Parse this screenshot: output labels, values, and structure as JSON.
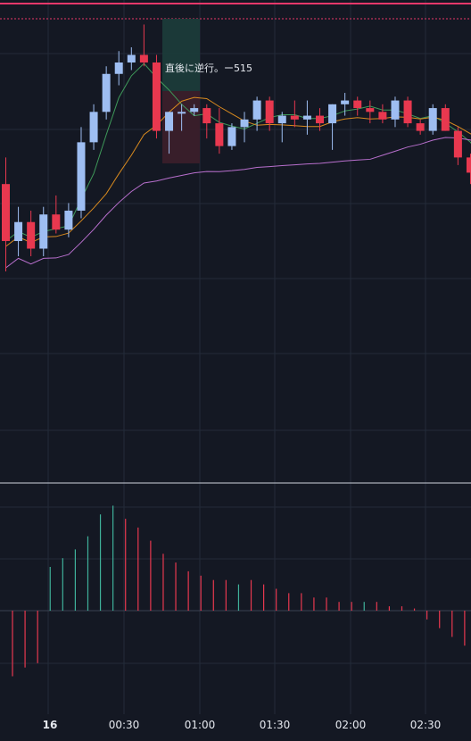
{
  "annotation": {
    "text": "直後に逆行。ー515"
  },
  "time_axis": {
    "labels": [
      "16",
      "00:30",
      "01:00",
      "01:30",
      "02:00",
      "02:30"
    ]
  },
  "colors": {
    "background": "#141823",
    "grid": "#232a38",
    "up": "#9ebef2",
    "down": "#e8384f",
    "ma_fast": "#3f9a5a",
    "ma_mid": "#d88a1f",
    "ma_slow": "#b86fcd",
    "hist_pos": "#3fb19a",
    "hist_neg": "#e8384f",
    "top_line": "#e8386a",
    "profit_zone": "#1b3b3a",
    "loss_zone": "#3a1f2b",
    "divider": "#cfd3dc",
    "text": "#e6e9ef"
  },
  "candles": [
    {
      "t": 0,
      "o": 205,
      "h": 212,
      "l": 182,
      "c": 190
    },
    {
      "t": 1,
      "o": 190,
      "h": 199,
      "l": 186,
      "c": 195
    },
    {
      "t": 2,
      "o": 195,
      "h": 198,
      "l": 186,
      "c": 188
    },
    {
      "t": 3,
      "o": 188,
      "h": 199,
      "l": 186,
      "c": 197
    },
    {
      "t": 4,
      "o": 197,
      "h": 202,
      "l": 192,
      "c": 193
    },
    {
      "t": 5,
      "o": 193,
      "h": 200,
      "l": 191,
      "c": 198
    },
    {
      "t": 6,
      "o": 198,
      "h": 220,
      "l": 196,
      "c": 216
    },
    {
      "t": 7,
      "o": 216,
      "h": 226,
      "l": 214,
      "c": 224
    },
    {
      "t": 8,
      "o": 224,
      "h": 236,
      "l": 222,
      "c": 234
    },
    {
      "t": 9,
      "o": 234,
      "h": 240,
      "l": 231,
      "c": 237
    },
    {
      "t": 10,
      "o": 237,
      "h": 241,
      "l": 235,
      "c": 239
    },
    {
      "t": 11,
      "o": 239,
      "h": 247,
      "l": 236,
      "c": 237
    },
    {
      "t": 12,
      "o": 237,
      "h": 239,
      "l": 217,
      "c": 219
    },
    {
      "t": 13,
      "o": 219,
      "h": 224,
      "l": 213,
      "c": 224
    },
    {
      "t": 14,
      "o": 224,
      "h": 226,
      "l": 219,
      "c": 224
    },
    {
      "t": 15,
      "o": 224,
      "h": 226,
      "l": 223,
      "c": 225
    },
    {
      "t": 16,
      "o": 225,
      "h": 226,
      "l": 217,
      "c": 221
    },
    {
      "t": 17,
      "o": 221,
      "h": 225,
      "l": 213,
      "c": 215
    },
    {
      "t": 18,
      "o": 215,
      "h": 221,
      "l": 214,
      "c": 220
    },
    {
      "t": 19,
      "o": 220,
      "h": 224,
      "l": 216,
      "c": 222
    },
    {
      "t": 20,
      "o": 222,
      "h": 228,
      "l": 219,
      "c": 227
    },
    {
      "t": 21,
      "o": 227,
      "h": 228,
      "l": 219,
      "c": 221
    },
    {
      "t": 22,
      "o": 221,
      "h": 224,
      "l": 216,
      "c": 223
    },
    {
      "t": 23,
      "o": 223,
      "h": 227,
      "l": 220,
      "c": 222
    },
    {
      "t": 24,
      "o": 222,
      "h": 227,
      "l": 218,
      "c": 223
    },
    {
      "t": 25,
      "o": 223,
      "h": 225,
      "l": 219,
      "c": 221
    },
    {
      "t": 26,
      "o": 221,
      "h": 226,
      "l": 214,
      "c": 226
    },
    {
      "t": 27,
      "o": 226,
      "h": 229,
      "l": 223,
      "c": 227
    },
    {
      "t": 28,
      "o": 227,
      "h": 228,
      "l": 223,
      "c": 225
    },
    {
      "t": 29,
      "o": 225,
      "h": 227,
      "l": 221,
      "c": 224
    },
    {
      "t": 30,
      "o": 224,
      "h": 226,
      "l": 221,
      "c": 222
    },
    {
      "t": 31,
      "o": 222,
      "h": 228,
      "l": 220,
      "c": 227
    },
    {
      "t": 32,
      "o": 227,
      "h": 228,
      "l": 220,
      "c": 221
    },
    {
      "t": 33,
      "o": 221,
      "h": 222,
      "l": 218,
      "c": 219
    },
    {
      "t": 34,
      "o": 219,
      "h": 226,
      "l": 218,
      "c": 225
    },
    {
      "t": 35,
      "o": 225,
      "h": 226,
      "l": 219,
      "c": 219
    },
    {
      "t": 36,
      "o": 219,
      "h": 220,
      "l": 210,
      "c": 212
    },
    {
      "t": 37,
      "o": 212,
      "h": 213,
      "l": 205,
      "c": 208
    },
    {
      "t": 38,
      "o": 208,
      "h": 210,
      "l": 200,
      "c": 203
    },
    {
      "t": 39,
      "o": 203,
      "h": 204,
      "l": 192,
      "c": 194
    }
  ],
  "histogram": [
    {
      "v": -15,
      "c": "neg"
    },
    {
      "v": -13,
      "c": "neg"
    },
    {
      "v": -12,
      "c": "neg"
    },
    {
      "v": 10,
      "c": "pos"
    },
    {
      "v": 12,
      "c": "pos"
    },
    {
      "v": 14,
      "c": "pos"
    },
    {
      "v": 17,
      "c": "pos"
    },
    {
      "v": 22,
      "c": "pos"
    },
    {
      "v": 24,
      "c": "pos"
    },
    {
      "v": 21,
      "c": "neg"
    },
    {
      "v": 19,
      "c": "neg"
    },
    {
      "v": 16,
      "c": "neg"
    },
    {
      "v": 13,
      "c": "neg"
    },
    {
      "v": 11,
      "c": "neg"
    },
    {
      "v": 9,
      "c": "neg"
    },
    {
      "v": 8,
      "c": "neg"
    },
    {
      "v": 7,
      "c": "neg"
    },
    {
      "v": 7,
      "c": "neg"
    },
    {
      "v": 6,
      "c": "pos"
    },
    {
      "v": 7,
      "c": "neg"
    },
    {
      "v": 6,
      "c": "neg"
    },
    {
      "v": 5,
      "c": "neg"
    },
    {
      "v": 4,
      "c": "neg"
    },
    {
      "v": 4,
      "c": "neg"
    },
    {
      "v": 3,
      "c": "neg"
    },
    {
      "v": 3,
      "c": "neg"
    },
    {
      "v": 2,
      "c": "neg"
    },
    {
      "v": 2,
      "c": "neg"
    },
    {
      "v": 2,
      "c": "pos"
    },
    {
      "v": 2,
      "c": "neg"
    },
    {
      "v": 1,
      "c": "neg"
    },
    {
      "v": 1,
      "c": "neg"
    },
    {
      "v": 0.5,
      "c": "neg"
    },
    {
      "v": -2,
      "c": "neg"
    },
    {
      "v": -4,
      "c": "neg"
    },
    {
      "v": -6,
      "c": "neg"
    },
    {
      "v": -8,
      "c": "neg"
    }
  ]
}
